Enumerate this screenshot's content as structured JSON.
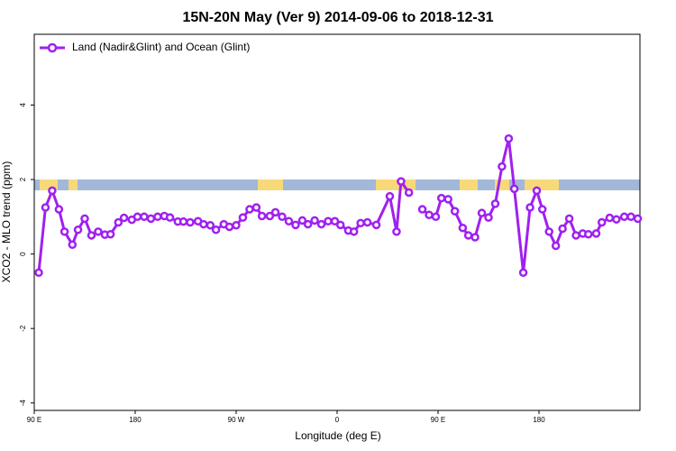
{
  "chart_data": {
    "type": "line",
    "title": "15N-20N May (Ver 9)   2014-09-06 to 2018-12-31",
    "xlabel": "Longitude (deg E)",
    "ylabel": "XCO2 - MLO trend (ppm)",
    "xlim": [
      90,
      630
    ],
    "xticks": [
      {
        "value": 90,
        "label": "90 E"
      },
      180,
      {
        "value": 270,
        "label": "90 W"
      },
      {
        "value": 360,
        "label": "0"
      },
      {
        "value": 450,
        "label": "90 E"
      },
      {
        "value": 540,
        "label": "180"
      }
    ],
    "ylim": [
      -4.2,
      5.9
    ],
    "yticks": [
      -4,
      -2,
      0,
      2,
      4
    ],
    "legend": "upper left",
    "x": [
      94,
      100,
      106,
      112,
      117,
      124,
      129,
      135,
      141,
      147,
      153,
      158,
      165,
      170,
      177,
      182,
      188,
      194,
      200,
      206,
      211,
      218,
      223,
      229,
      236,
      241,
      247,
      252,
      259,
      264,
      270,
      276,
      282,
      288,
      293,
      300,
      305,
      311,
      317,
      323,
      329,
      334,
      340,
      346,
      352,
      358,
      363,
      370,
      375,
      381,
      387,
      395,
      407,
      413,
      417,
      424,
      429,
      436,
      442,
      448,
      453,
      459,
      465,
      472,
      477,
      483,
      489,
      495,
      501,
      507,
      513,
      518,
      526,
      532,
      538,
      543,
      549,
      555,
      561,
      567,
      573,
      579,
      584,
      591,
      596,
      603,
      609,
      616,
      622,
      628
    ],
    "series": [
      {
        "name": "Land (Nadir&Glint) and Ocean (Glint)",
        "color": "#a020f0",
        "values": [
          -0.5,
          1.25,
          1.7,
          1.2,
          0.6,
          0.25,
          0.65,
          0.95,
          0.5,
          0.6,
          0.52,
          0.53,
          0.85,
          0.97,
          0.92,
          1.0,
          1.0,
          0.95,
          1.0,
          1.02,
          0.98,
          0.87,
          0.87,
          0.85,
          0.88,
          0.8,
          0.77,
          0.65,
          0.8,
          0.73,
          0.77,
          0.98,
          1.2,
          1.25,
          1.02,
          1.02,
          1.12,
          1.0,
          0.88,
          0.78,
          0.9,
          0.8,
          0.9,
          0.8,
          0.88,
          0.88,
          0.78,
          0.63,
          0.6,
          0.83,
          0.85,
          0.78,
          1.55,
          0.6,
          1.95,
          1.65,
          null,
          1.2,
          1.05,
          1.0,
          1.5,
          1.47,
          1.15,
          0.7,
          0.5,
          0.45,
          1.1,
          0.98,
          1.35,
          2.35,
          3.1,
          1.75,
          -0.5,
          1.25,
          1.7,
          1.2,
          0.6,
          0.22,
          0.68,
          0.95,
          0.5,
          0.55,
          0.53,
          0.55,
          0.85,
          0.97,
          0.93,
          1.0,
          1.0,
          0.95
        ]
      }
    ]
  }
}
